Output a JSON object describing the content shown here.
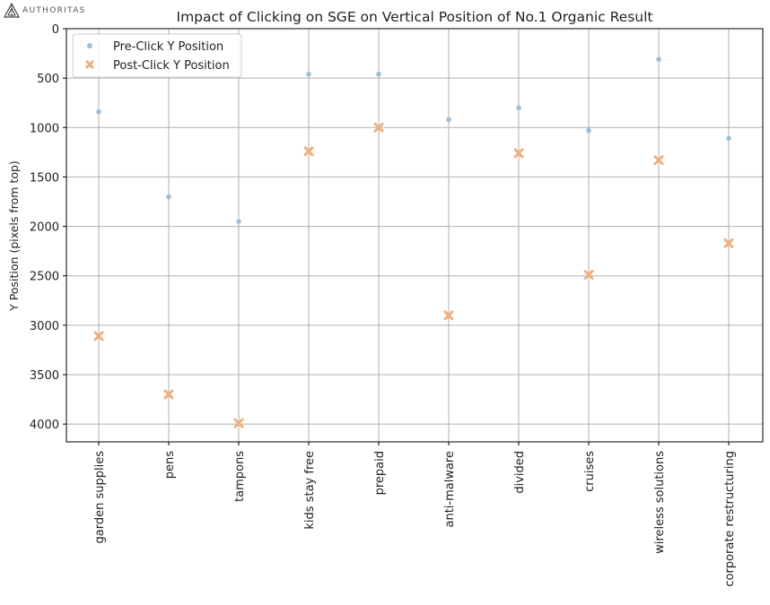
{
  "logo": {
    "text": "AUTHORITAS"
  },
  "chart_data": {
    "type": "scatter",
    "title": "Impact of Clicking on SGE on Vertical Position of No.1 Organic Result",
    "xlabel": "",
    "ylabel": "Y Position (pixels from top)",
    "categories": [
      "garden supplies",
      "pens",
      "tampons",
      "kids stay free",
      "prepaid",
      "anti-malware",
      "divided",
      "cruises",
      "wireless solutions",
      "corporate restructuring"
    ],
    "ylim": [
      4180,
      0
    ],
    "y_inverted": true,
    "yticks": [
      0,
      500,
      1000,
      1500,
      2000,
      2500,
      3000,
      3500,
      4000
    ],
    "ytick_labels": [
      "0",
      "500",
      "1000",
      "1500",
      "2000",
      "2500",
      "3000",
      "3500",
      "4000"
    ],
    "grid": true,
    "legend_position": "top-left",
    "series": [
      {
        "name": "Pre-Click Y Position",
        "marker": "circle",
        "color": "#9fbdd6",
        "values": [
          840,
          1700,
          1950,
          460,
          460,
          920,
          800,
          1030,
          310,
          1110
        ]
      },
      {
        "name": "Post-Click Y Position",
        "marker": "x",
        "color": "#f0b07e",
        "values": [
          3110,
          3700,
          3990,
          1240,
          1000,
          2900,
          1260,
          2490,
          1330,
          2170
        ]
      }
    ]
  }
}
